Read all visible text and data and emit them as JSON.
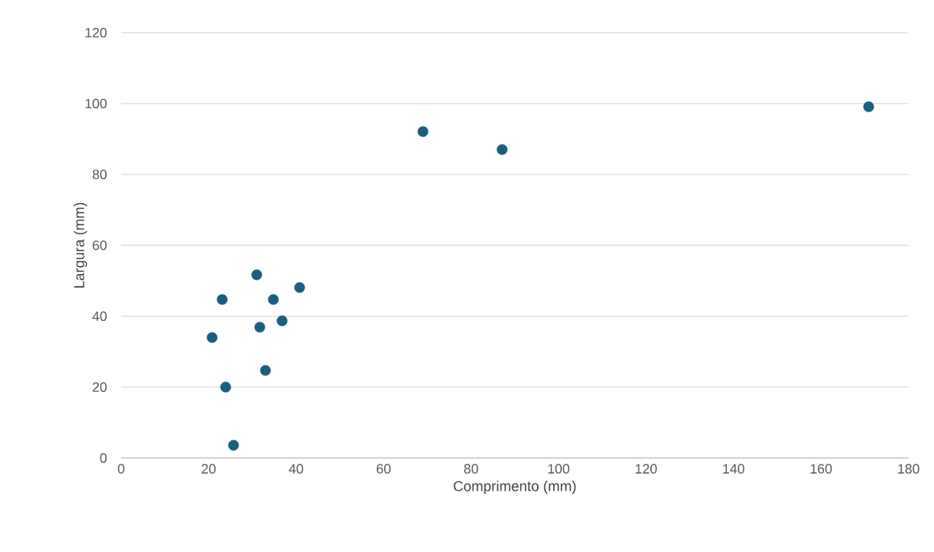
{
  "chart_data": {
    "type": "scatter",
    "xlabel": "Comprimento  (mm)",
    "ylabel": "Largura  (mm)",
    "x": [
      20.8,
      23.1,
      23.9,
      25.7,
      31.0,
      31.7,
      33.0,
      34.8,
      36.8,
      40.8,
      69.0,
      87.1,
      170.9
    ],
    "values": [
      34,
      44.7,
      20,
      3.6,
      51.7,
      36.9,
      24.7,
      44.7,
      38.7,
      48.1,
      92.1,
      87,
      99.1
    ],
    "color": "#1a5e80",
    "marker": "circle",
    "xlim": [
      0,
      180
    ],
    "xticks": [
      0,
      20,
      40,
      60,
      80,
      100,
      120,
      140,
      160,
      180
    ],
    "ylim": [
      0,
      120
    ],
    "yticks": [
      0,
      20,
      40,
      60,
      80,
      100,
      120
    ],
    "grid": "y"
  }
}
